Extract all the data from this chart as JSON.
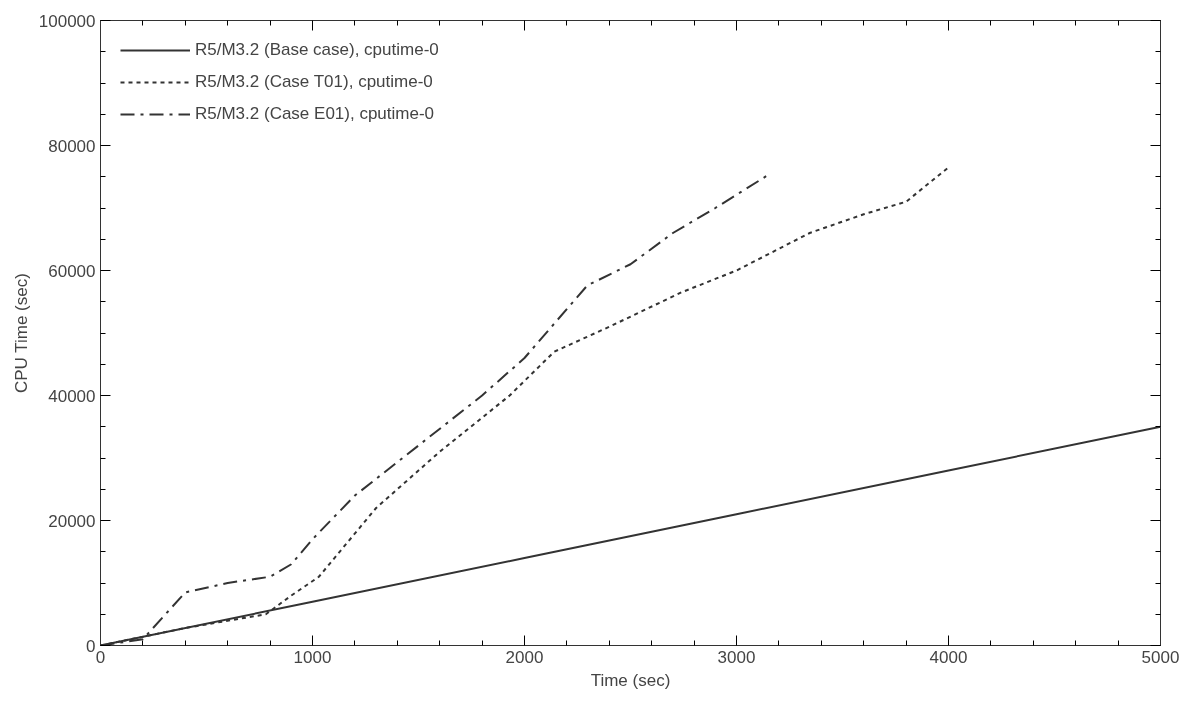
{
  "chart_data": {
    "type": "line",
    "xlabel": "Time (sec)",
    "ylabel": "CPU Time (sec)",
    "xlim": [
      0,
      5000
    ],
    "ylim": [
      0,
      100000
    ],
    "xticks": [
      0,
      1000,
      2000,
      3000,
      4000,
      5000
    ],
    "yticks": [
      0,
      20000,
      40000,
      60000,
      80000,
      100000
    ],
    "grid": false,
    "legend": "top left",
    "series": [
      {
        "name": "R5/M3.2 (Base case), cputime-0",
        "color": "#333333",
        "line_style": "solid",
        "x": [
          0,
          1000,
          2000,
          3000,
          4000,
          5000
        ],
        "values": [
          0,
          7000,
          14000,
          21000,
          28000,
          35000
        ]
      },
      {
        "name": "R5/M3.2 (Case T01), cputime-0",
        "color": "#333333",
        "line_style": "dashed",
        "x": [
          0,
          400,
          780,
          900,
          1030,
          1300,
          1600,
          1930,
          2140,
          2400,
          2740,
          3000,
          3345,
          3600,
          3800,
          4000
        ],
        "values": [
          0,
          2800,
          5000,
          8000,
          11000,
          22000,
          31000,
          40000,
          47000,
          51000,
          56500,
          60000,
          66000,
          69000,
          71000,
          76500
        ]
      },
      {
        "name": "R5/M3.2 (Case E01), cputime-0",
        "color": "#333333",
        "line_style": "dashdot",
        "x": [
          0,
          200,
          400,
          600,
          800,
          900,
          1000,
          1200,
          1500,
          1800,
          2000,
          2296,
          2500,
          2700,
          2900,
          3150
        ],
        "values": [
          0,
          1000,
          8500,
          10000,
          11000,
          13000,
          17000,
          24000,
          32000,
          40000,
          46000,
          57600,
          61000,
          66000,
          70000,
          75300
        ]
      }
    ]
  }
}
